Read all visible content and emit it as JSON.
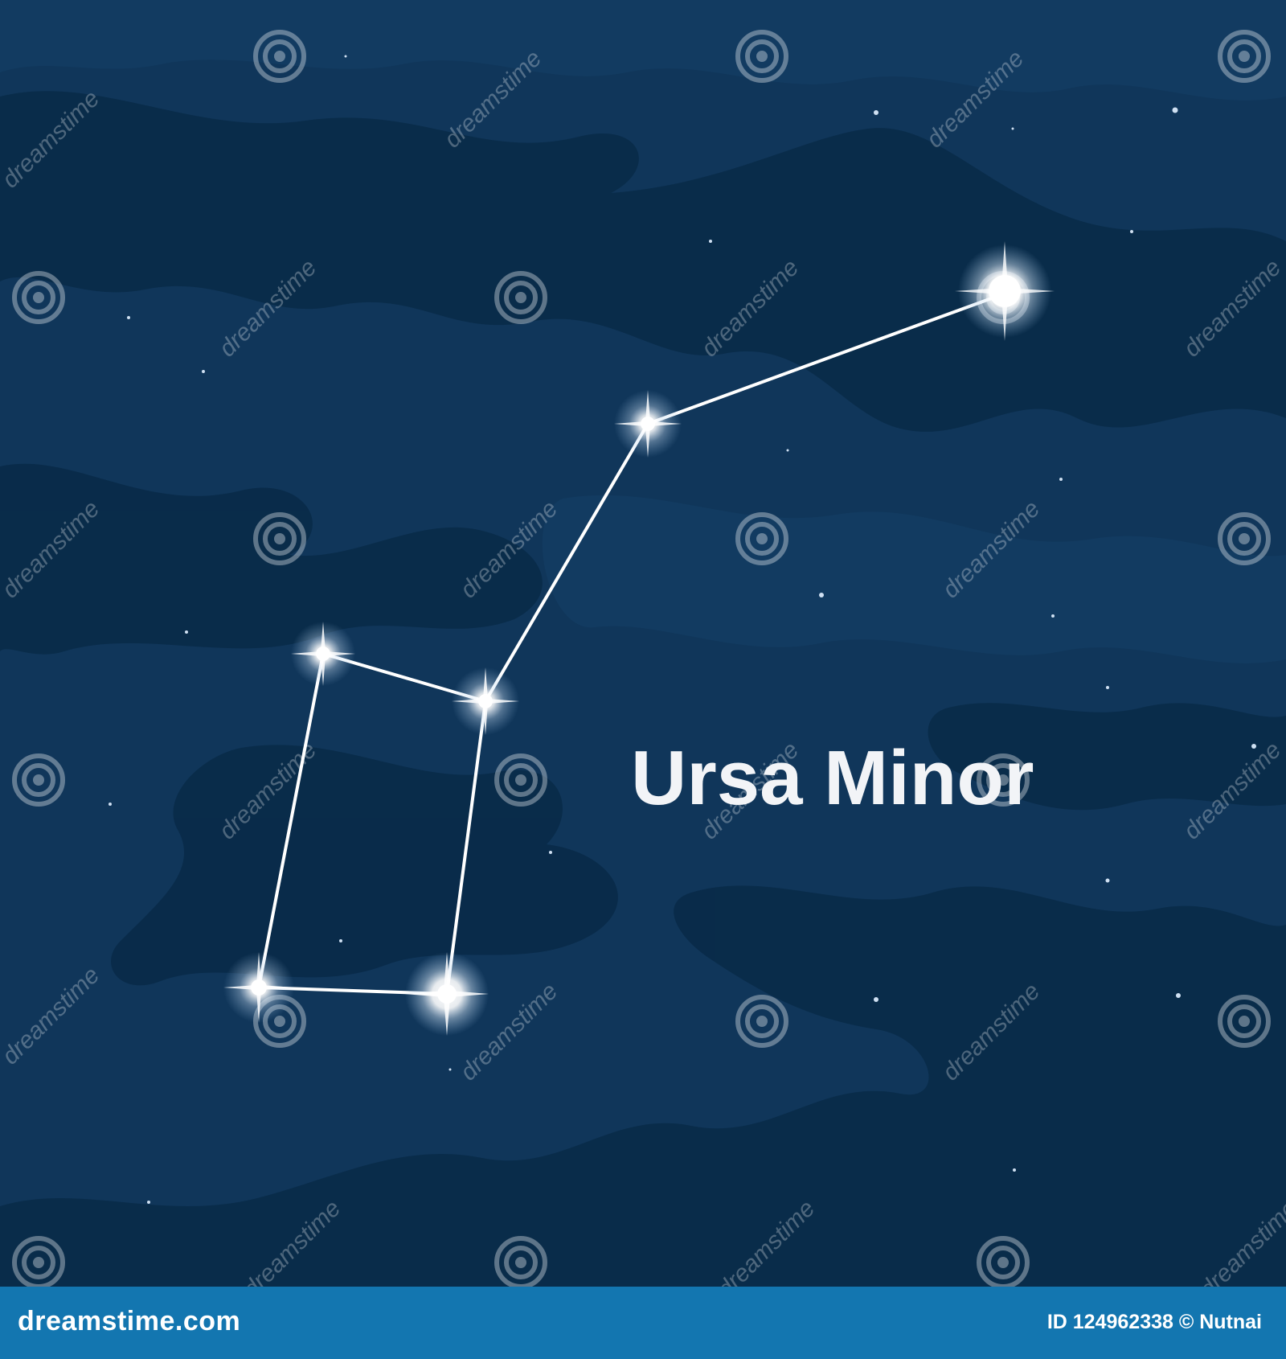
{
  "scene": {
    "title": "Ursa Minor",
    "background_color": "#10365a",
    "cloud_color": "#082a48",
    "line_color": "#ffffff",
    "star_color": "#ffffff"
  },
  "watermark": {
    "text": "dreamstime",
    "icon": "spiral-icon"
  },
  "footer": {
    "logo": "dreamstime.com",
    "credit": "ID 124962338 © Nutnai",
    "background_color": "#1376b0"
  }
}
